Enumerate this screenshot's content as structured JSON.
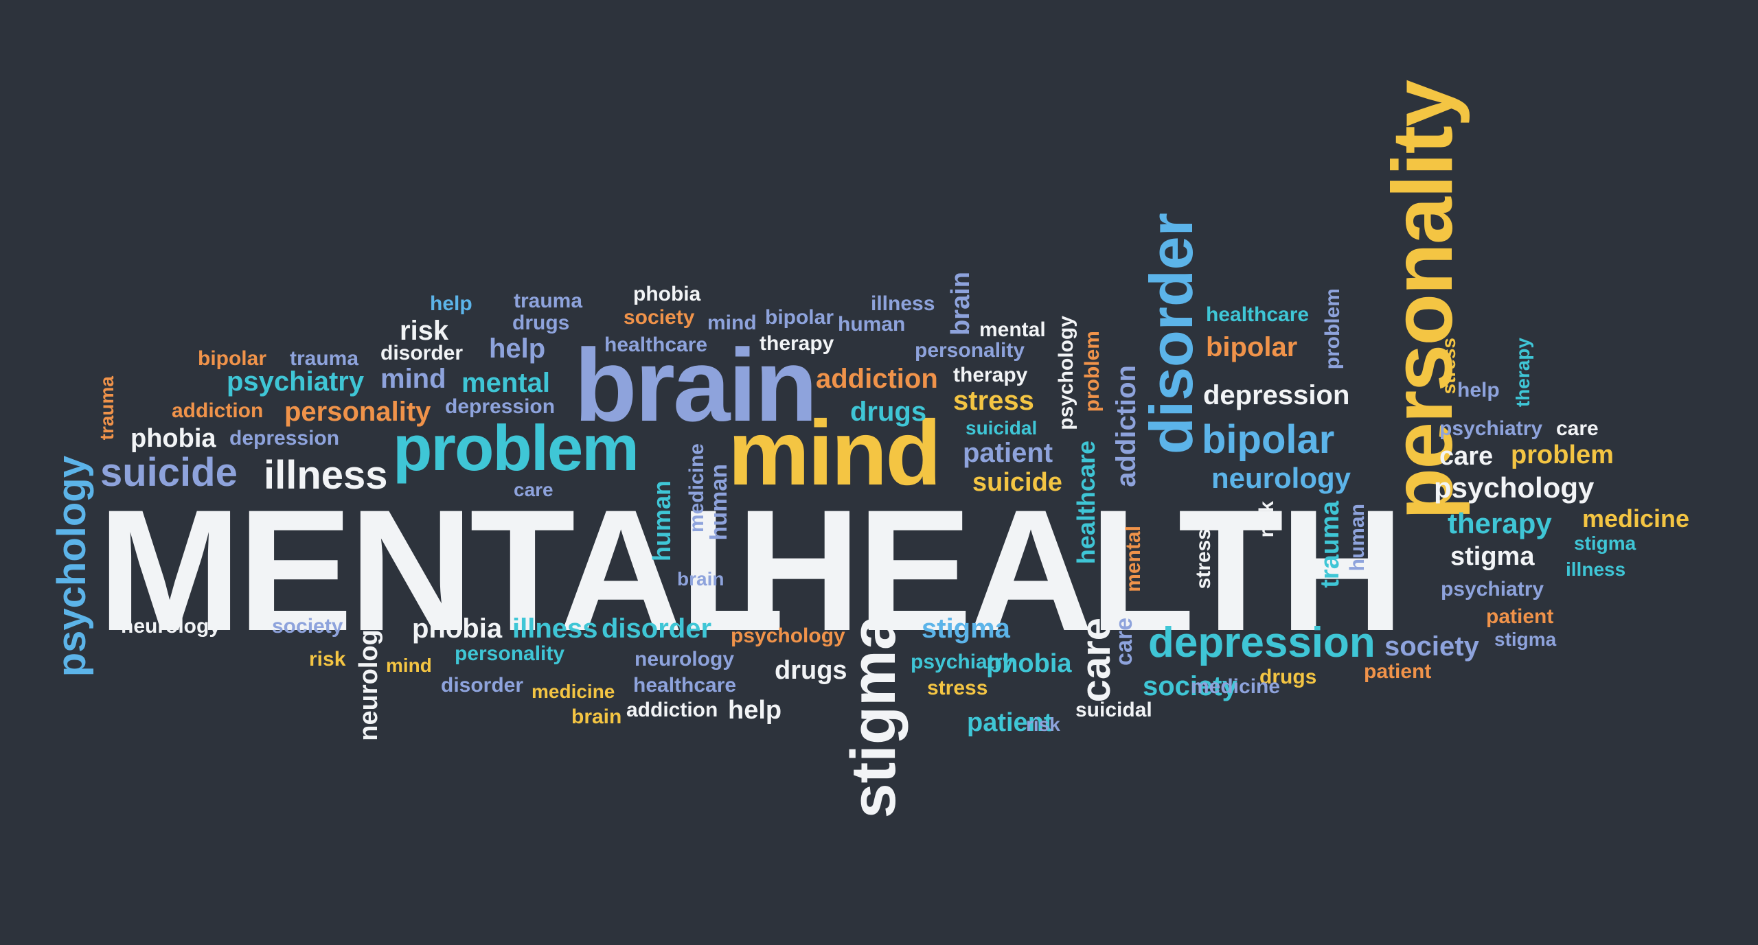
{
  "colors": {
    "background": "#2d333c",
    "white": "#f2f4f6",
    "blue": "#8ea3dc",
    "teal": "#3fc6d6",
    "yellow": "#f4c543",
    "orange": "#f0934a",
    "sky": "#5cb4e9"
  },
  "words": [
    {
      "text": "MENTAL",
      "color": "white"
    },
    {
      "text": "HEALTH",
      "color": "white"
    },
    {
      "text": "brain",
      "color": "blue"
    },
    {
      "text": "mind",
      "color": "yellow"
    },
    {
      "text": "problem",
      "color": "teal"
    },
    {
      "text": "personality",
      "color": "yellow"
    },
    {
      "text": "disorder",
      "color": "sky"
    },
    {
      "text": "stigma",
      "color": "white"
    },
    {
      "text": "depression",
      "color": "teal"
    },
    {
      "text": "suicide",
      "color": "blue"
    },
    {
      "text": "illness",
      "color": "white"
    },
    {
      "text": "psychology",
      "color": "sky"
    },
    {
      "text": "bipolar",
      "color": "sky"
    },
    {
      "text": "neurology",
      "color": "sky"
    },
    {
      "text": "care",
      "color": "white"
    },
    {
      "text": "psychology",
      "color": "white"
    },
    {
      "text": "therapy",
      "color": "teal"
    },
    {
      "text": "stigma",
      "color": "white"
    },
    {
      "text": "medicine",
      "color": "yellow"
    },
    {
      "text": "stigma",
      "color": "teal"
    },
    {
      "text": "illness",
      "color": "teal"
    },
    {
      "text": "psychiatry",
      "color": "blue"
    },
    {
      "text": "patient",
      "color": "orange"
    },
    {
      "text": "stigma",
      "color": "blue"
    },
    {
      "text": "society",
      "color": "blue"
    },
    {
      "text": "patient",
      "color": "orange"
    },
    {
      "text": "drugs",
      "color": "yellow"
    },
    {
      "text": "society",
      "color": "teal"
    },
    {
      "text": "care",
      "color": "white"
    },
    {
      "text": "problem",
      "color": "yellow"
    },
    {
      "text": "psychiatry",
      "color": "blue"
    },
    {
      "text": "care",
      "color": "white"
    },
    {
      "text": "help",
      "color": "blue"
    },
    {
      "text": "therapy",
      "color": "teal"
    },
    {
      "text": "stress",
      "color": "yellow"
    },
    {
      "text": "problem",
      "color": "blue"
    },
    {
      "text": "depression",
      "color": "white"
    },
    {
      "text": "bipolar",
      "color": "orange"
    },
    {
      "text": "healthcare",
      "color": "teal"
    },
    {
      "text": "human",
      "color": "blue"
    },
    {
      "text": "trauma",
      "color": "teal"
    },
    {
      "text": "risk",
      "color": "white"
    },
    {
      "text": "stress",
      "color": "white"
    },
    {
      "text": "mental",
      "color": "orange"
    },
    {
      "text": "addiction",
      "color": "blue"
    },
    {
      "text": "healthcare",
      "color": "teal"
    },
    {
      "text": "problem",
      "color": "orange"
    },
    {
      "text": "psychology",
      "color": "white"
    },
    {
      "text": "brain",
      "color": "blue"
    },
    {
      "text": "mental",
      "color": "white"
    },
    {
      "text": "personality",
      "color": "blue"
    },
    {
      "text": "therapy",
      "color": "white"
    },
    {
      "text": "stress",
      "color": "yellow"
    },
    {
      "text": "suicidal",
      "color": "teal"
    },
    {
      "text": "patient",
      "color": "blue"
    },
    {
      "text": "suicide",
      "color": "yellow"
    },
    {
      "text": "addiction",
      "color": "orange"
    },
    {
      "text": "drugs",
      "color": "teal"
    },
    {
      "text": "illness",
      "color": "blue"
    },
    {
      "text": "bipolar",
      "color": "blue"
    },
    {
      "text": "human",
      "color": "blue"
    },
    {
      "text": "therapy",
      "color": "white"
    },
    {
      "text": "phobia",
      "color": "white"
    },
    {
      "text": "society",
      "color": "orange"
    },
    {
      "text": "mind",
      "color": "blue"
    },
    {
      "text": "healthcare",
      "color": "blue"
    },
    {
      "text": "trauma",
      "color": "blue"
    },
    {
      "text": "drugs",
      "color": "blue"
    },
    {
      "text": "help",
      "color": "sky"
    },
    {
      "text": "help",
      "color": "blue"
    },
    {
      "text": "risk",
      "color": "white"
    },
    {
      "text": "disorder",
      "color": "white"
    },
    {
      "text": "bipolar",
      "color": "orange"
    },
    {
      "text": "trauma",
      "color": "blue"
    },
    {
      "text": "psychiatry",
      "color": "teal"
    },
    {
      "text": "mind",
      "color": "blue"
    },
    {
      "text": "mental",
      "color": "teal"
    },
    {
      "text": "addiction",
      "color": "orange"
    },
    {
      "text": "personality",
      "color": "orange"
    },
    {
      "text": "depression",
      "color": "blue"
    },
    {
      "text": "phobia",
      "color": "white"
    },
    {
      "text": "depression",
      "color": "blue"
    },
    {
      "text": "trauma",
      "color": "orange"
    },
    {
      "text": "care",
      "color": "blue"
    },
    {
      "text": "medicine",
      "color": "blue"
    },
    {
      "text": "human",
      "color": "blue"
    },
    {
      "text": "human",
      "color": "teal"
    },
    {
      "text": "brain",
      "color": "blue"
    },
    {
      "text": "neurology",
      "color": "white"
    },
    {
      "text": "society",
      "color": "blue"
    },
    {
      "text": "neurology",
      "color": "white"
    },
    {
      "text": "risk",
      "color": "yellow"
    },
    {
      "text": "mind",
      "color": "yellow"
    },
    {
      "text": "phobia",
      "color": "white"
    },
    {
      "text": "illness",
      "color": "teal"
    },
    {
      "text": "disorder",
      "color": "teal"
    },
    {
      "text": "personality",
      "color": "teal"
    },
    {
      "text": "psychology",
      "color": "orange"
    },
    {
      "text": "neurology",
      "color": "blue"
    },
    {
      "text": "disorder",
      "color": "blue"
    },
    {
      "text": "medicine",
      "color": "yellow"
    },
    {
      "text": "healthcare",
      "color": "blue"
    },
    {
      "text": "drugs",
      "color": "white"
    },
    {
      "text": "brain",
      "color": "yellow"
    },
    {
      "text": "addiction",
      "color": "white"
    },
    {
      "text": "help",
      "color": "white"
    },
    {
      "text": "stigma",
      "color": "white"
    },
    {
      "text": "psychiatry",
      "color": "sky"
    },
    {
      "text": "phobia",
      "color": "teal"
    },
    {
      "text": "stress",
      "color": "teal"
    },
    {
      "text": "patient",
      "color": "yellow"
    },
    {
      "text": "risk",
      "color": "teal"
    },
    {
      "text": "suicidal",
      "color": "blue"
    },
    {
      "text": "care",
      "color": "white"
    },
    {
      "text": "medicine",
      "color": "blue"
    },
    {
      "text": "society",
      "color": "blue"
    },
    {
      "text": "healthcare",
      "color": "teal"
    },
    {
      "text": "addiction",
      "color": "blue"
    },
    {
      "text": "stress",
      "color": "white"
    },
    {
      "text": "risk",
      "color": "white"
    },
    {
      "text": "mental",
      "color": "orange"
    },
    {
      "text": "trauma",
      "color": "teal"
    },
    {
      "text": "human",
      "color": "teal"
    },
    {
      "text": "psychology",
      "color": "white"
    },
    {
      "text": "problem",
      "color": "orange"
    }
  ]
}
